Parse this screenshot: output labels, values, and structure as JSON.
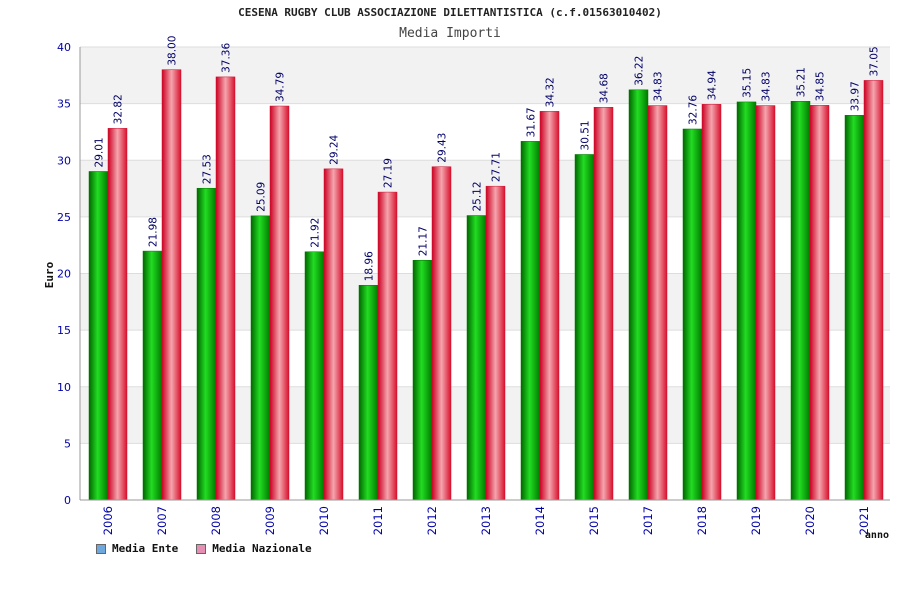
{
  "chart_data": {
    "type": "bar",
    "title": "CESENA RUGBY CLUB ASSOCIAZIONE DILETTANTISTICA (c.f.01563010402)",
    "subtitle": "Media Importi",
    "ylabel": "Euro",
    "xlabel": "anno",
    "ylim": [
      0,
      40
    ],
    "yticks": [
      0,
      5,
      10,
      15,
      20,
      25,
      30,
      35,
      40
    ],
    "grid": true,
    "legend_position": "bottom-left",
    "categories": [
      "2006",
      "2007",
      "2008",
      "2009",
      "2010",
      "2011",
      "2012",
      "2013",
      "2014",
      "2015",
      "2017",
      "2018",
      "2019",
      "2020",
      "2021"
    ],
    "series": [
      {
        "name": "Media Ente",
        "color": "#00aa00",
        "legend_color": "#6fa8dc",
        "values": [
          29.01,
          21.98,
          27.53,
          25.09,
          21.92,
          18.96,
          21.17,
          25.12,
          31.67,
          30.51,
          36.22,
          32.76,
          35.15,
          35.21,
          33.97
        ],
        "labels": [
          "29.01",
          "21.98",
          "27.53",
          "25.09",
          "21.92",
          "18.96",
          "21.17",
          "25.12",
          "31.67",
          "30.51",
          "36.22",
          "32.76",
          "35.15",
          "35.21",
          "33.97"
        ]
      },
      {
        "name": "Media Nazionale",
        "color": "#e8213a",
        "legend_color": "#e58fb2",
        "values": [
          32.82,
          38.0,
          37.36,
          34.79,
          29.24,
          27.19,
          29.43,
          27.71,
          34.32,
          34.68,
          34.83,
          34.94,
          34.83,
          34.85,
          37.05
        ],
        "labels": [
          "32.82",
          "38.00",
          "37.36",
          "34.79",
          "29.24",
          "27.19",
          "29.43",
          "27.71",
          "34.32",
          "34.68",
          "34.83",
          "34.94",
          "34.83",
          "34.85",
          "37.05"
        ]
      }
    ]
  }
}
